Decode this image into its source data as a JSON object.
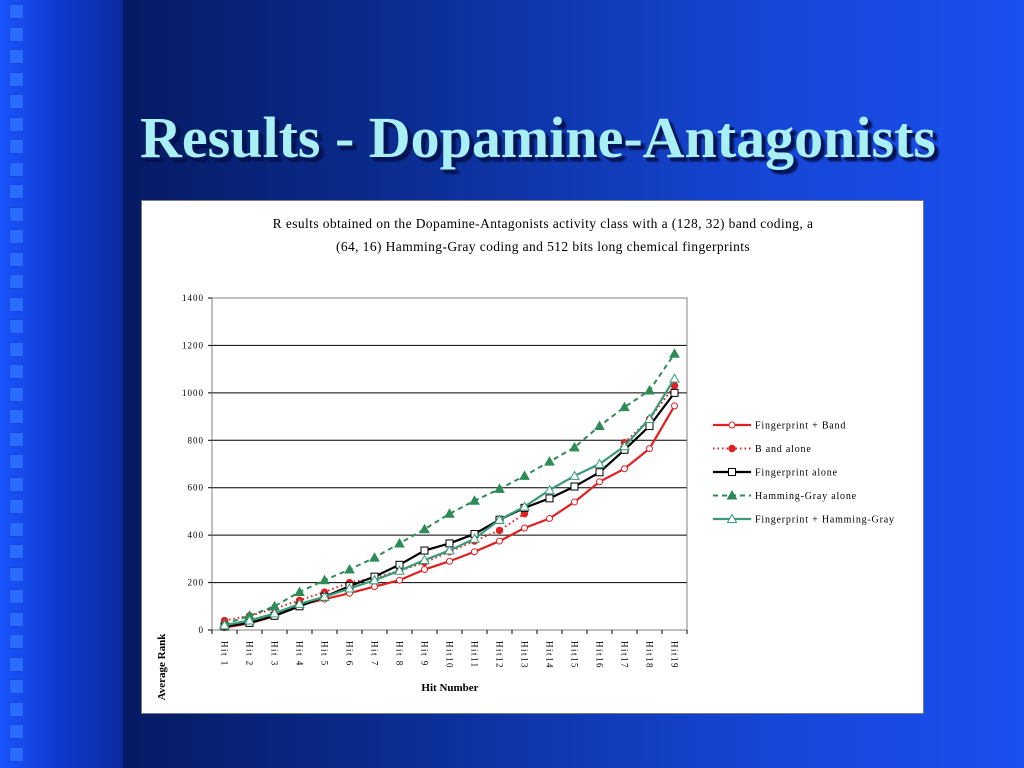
{
  "slide": {
    "title": "Results - Dopamine-Antagonists"
  },
  "colors": {
    "strip_square": "#2a6cff",
    "title_text": "#a8f0f4"
  },
  "chart_data": {
    "type": "line",
    "title_line1": "R esults obtained on the Dopamine-Antagonists activity class with a (128, 32) band coding, a",
    "title_line2": "(64, 16) Hamming-Gray coding and 512 bits long chemical fingerprints",
    "xlabel": "Hit Number",
    "ylabel": "Average Rank",
    "ylim": [
      0,
      1400
    ],
    "yticks": [
      0,
      200,
      400,
      600,
      800,
      1000,
      1200,
      1400
    ],
    "ytick_labels": [
      "0",
      "200",
      "400",
      "600",
      "800",
      "1000",
      "1200",
      "1400"
    ],
    "grid": true,
    "legend_position": "right",
    "categories": [
      "Hit 1",
      "Hit 2",
      "Hit 3",
      "Hit 4",
      "Hit 5",
      "Hit 6",
      "Hit 7",
      "Hit 8",
      "Hit 9",
      "Hit10",
      "Hit11",
      "Hit12",
      "Hit13",
      "Hit14",
      "Hit15",
      "Hit16",
      "Hit17",
      "Hit18",
      "Hit19"
    ],
    "series": [
      {
        "name": "Fingerprint + Band",
        "color": "#e02020",
        "dash": "solid",
        "marker": "circle-open",
        "values": [
          10,
          28,
          58,
          105,
          130,
          155,
          183,
          210,
          255,
          290,
          330,
          375,
          430,
          470,
          540,
          625,
          680,
          765,
          945
        ]
      },
      {
        "name": "B and alone",
        "color": "#e02020",
        "dash": "dotted",
        "marker": "circle-filled",
        "values": [
          40,
          60,
          90,
          125,
          160,
          200,
          220,
          250,
          285,
          330,
          375,
          420,
          490,
          null,
          null,
          null,
          790,
          890,
          1030
        ]
      },
      {
        "name": "Fingerprint alone",
        "color": "#000000",
        "dash": "solid",
        "marker": "square-open",
        "values": [
          15,
          30,
          60,
          100,
          140,
          185,
          225,
          275,
          335,
          365,
          405,
          465,
          515,
          555,
          605,
          665,
          760,
          860,
          1000
        ]
      },
      {
        "name": "Hamming-Gray alone",
        "color": "#2e8b57",
        "dash": "dashed",
        "marker": "triangle-filled",
        "values": [
          25,
          60,
          100,
          160,
          210,
          255,
          305,
          365,
          425,
          490,
          545,
          595,
          650,
          710,
          770,
          860,
          940,
          1010,
          1165
        ]
      },
      {
        "name": "Fingerprint + Hamming-Gray",
        "color": "#3a9a7a",
        "dash": "solid",
        "marker": "triangle-open",
        "values": [
          20,
          40,
          70,
          110,
          140,
          175,
          210,
          250,
          295,
          335,
          385,
          465,
          520,
          590,
          650,
          700,
          775,
          890,
          1060
        ]
      }
    ]
  }
}
